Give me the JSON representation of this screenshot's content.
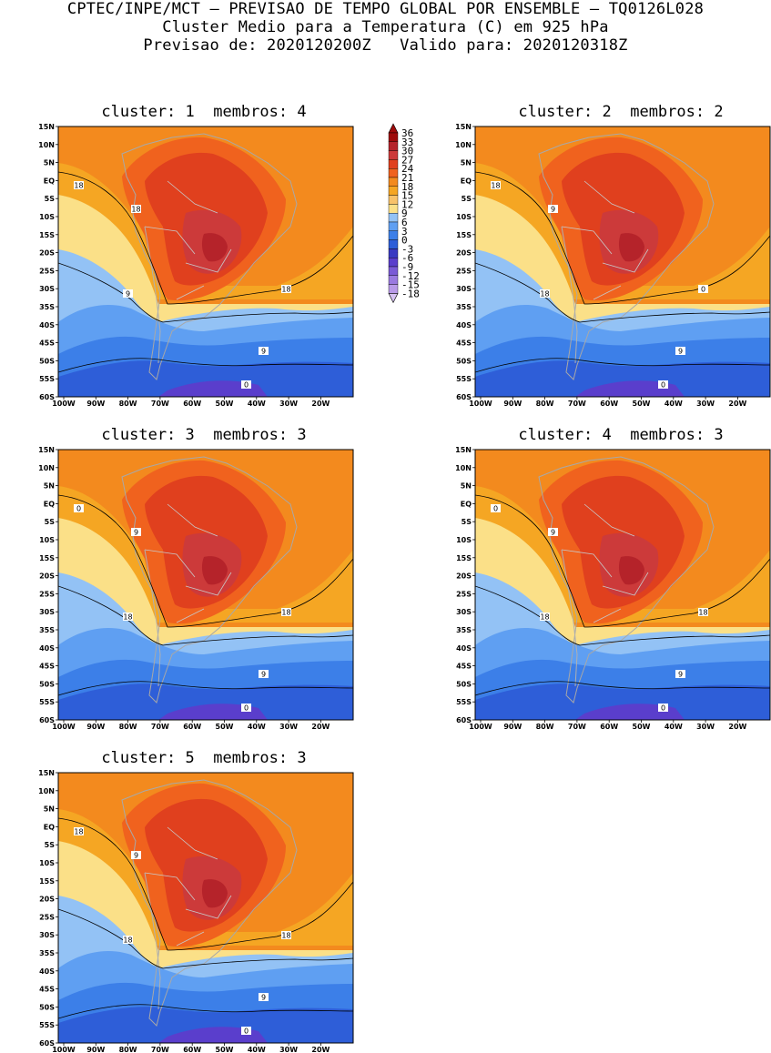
{
  "header": {
    "line1": "CPTEC/INPE/MCT – PREVISAO DE TEMPO GLOBAL POR ENSEMBLE – TQ0126L028",
    "line2": "Cluster Medio para a Temperatura (C) em 925 hPa",
    "line3": "Previsao de: 2020120200Z   Valido para: 2020120318Z"
  },
  "panels": [
    {
      "title": "cluster: 1  membros: 4",
      "contour_labels": [
        "18",
        "18",
        "9",
        "18",
        "9",
        "0"
      ]
    },
    {
      "title": "cluster: 2  membros: 2",
      "contour_labels": [
        "18",
        "9",
        "18",
        "0",
        "9",
        "0"
      ]
    },
    {
      "title": "cluster: 3  membros: 3",
      "contour_labels": [
        "18",
        "9",
        "18",
        "18",
        "9",
        "0",
        "0"
      ]
    },
    {
      "title": "cluster: 4  membros: 3",
      "contour_labels": [
        "18",
        "9",
        "18",
        "18",
        "9",
        "0",
        "0"
      ]
    },
    {
      "title": "cluster: 5  membros: 3",
      "contour_labels": [
        "18",
        "9",
        "18",
        "18",
        "9",
        "0"
      ]
    }
  ],
  "lat_ticks": [
    "15N",
    "10N",
    "5N",
    "EQ",
    "5S",
    "10S",
    "15S",
    "20S",
    "25S",
    "30S",
    "35S",
    "40S",
    "45S",
    "50S",
    "55S",
    "60S"
  ],
  "lon_ticks": [
    "100W",
    "90W",
    "80W",
    "70W",
    "60W",
    "50W",
    "40W",
    "30W",
    "20W"
  ],
  "colorbar": {
    "labels": [
      "36",
      "33",
      "30",
      "27",
      "24",
      "21",
      "18",
      "15",
      "12",
      "9",
      "6",
      "3",
      "0",
      "-3",
      "-6",
      "-9",
      "-12",
      "-15",
      "-18"
    ],
    "colors": [
      "#9e0b0b",
      "#b5232a",
      "#cc3a3a",
      "#e0401e",
      "#f0621e",
      "#f38a1e",
      "#f5a623",
      "#f8c26a",
      "#fbe088",
      "#93c2f5",
      "#5f9ff2",
      "#3c7fe8",
      "#2e5ed8",
      "#3a3ac2",
      "#5a3ecc",
      "#7a5ad6",
      "#9a7ae0",
      "#b89ae8",
      "#d6c2f2"
    ]
  }
}
